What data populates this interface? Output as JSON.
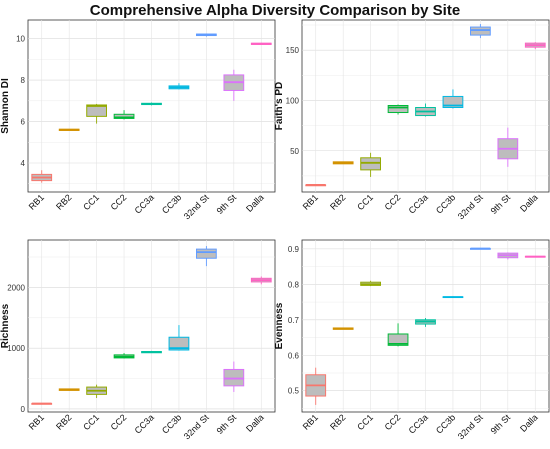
{
  "title": "Comprehensive Alpha Diversity Comparison by Site",
  "chart_data": [
    {
      "type": "box",
      "ylabel": "Shannon DI",
      "ylim": [
        2.6,
        10.9
      ],
      "yticks": [
        4,
        6,
        8,
        10
      ],
      "categories": [
        "RB1",
        "RB2",
        "CC1",
        "CC2",
        "CC3a",
        "CC3b",
        "32nd St",
        "9th St",
        "Dalla"
      ],
      "colors": [
        "#F8766D",
        "#D39200",
        "#93AA00",
        "#00BA38",
        "#00C19F",
        "#00B9E3",
        "#619CFF",
        "#DB72FB",
        "#FF61C3"
      ],
      "boxes": [
        {
          "lower_whisker": 3.05,
          "q1": 3.15,
          "median": 3.3,
          "q3": 3.45,
          "upper_whisker": 3.65
        },
        {
          "lower_whisker": 5.57,
          "q1": 5.57,
          "median": 5.6,
          "q3": 5.63,
          "upper_whisker": 5.63
        },
        {
          "lower_whisker": 5.9,
          "q1": 6.25,
          "median": 6.75,
          "q3": 6.8,
          "upper_whisker": 6.85
        },
        {
          "lower_whisker": 6.1,
          "q1": 6.15,
          "median": 6.2,
          "q3": 6.35,
          "upper_whisker": 6.55
        },
        {
          "lower_whisker": 6.78,
          "q1": 6.82,
          "median": 6.85,
          "q3": 6.88,
          "upper_whisker": 6.92
        },
        {
          "lower_whisker": 7.55,
          "q1": 7.58,
          "median": 7.65,
          "q3": 7.72,
          "upper_whisker": 7.85
        },
        {
          "lower_whisker": 10.1,
          "q1": 10.15,
          "median": 10.2,
          "q3": 10.22,
          "upper_whisker": 10.25
        },
        {
          "lower_whisker": 7.0,
          "q1": 7.5,
          "median": 7.9,
          "q3": 8.25,
          "upper_whisker": 8.5
        },
        {
          "lower_whisker": 9.7,
          "q1": 9.72,
          "median": 9.75,
          "q3": 9.78,
          "upper_whisker": 9.8
        }
      ]
    },
    {
      "type": "box",
      "ylabel": "Faith's PD",
      "ylim": [
        9,
        180
      ],
      "yticks": [
        50,
        100,
        150
      ],
      "categories": [
        "RB1",
        "RB2",
        "CC1",
        "CC2",
        "CC3a",
        "CC3b",
        "32nd St",
        "9th St",
        "Dalla"
      ],
      "colors": [
        "#F8766D",
        "#D39200",
        "#93AA00",
        "#00BA38",
        "#00C19F",
        "#00B9E3",
        "#619CFF",
        "#DB72FB",
        "#FF61C3"
      ],
      "boxes": [
        {
          "lower_whisker": 16,
          "q1": 16,
          "median": 16,
          "q3": 16,
          "upper_whisker": 16
        },
        {
          "lower_whisker": 37,
          "q1": 37,
          "median": 38,
          "q3": 39,
          "upper_whisker": 39
        },
        {
          "lower_whisker": 24,
          "q1": 31,
          "median": 38,
          "q3": 43,
          "upper_whisker": 48
        },
        {
          "lower_whisker": 86,
          "q1": 88,
          "median": 93,
          "q3": 95,
          "upper_whisker": 96
        },
        {
          "lower_whisker": 84,
          "q1": 85,
          "median": 89,
          "q3": 93,
          "upper_whisker": 97
        },
        {
          "lower_whisker": 92,
          "q1": 93,
          "median": 95,
          "q3": 104,
          "upper_whisker": 111
        },
        {
          "lower_whisker": 162,
          "q1": 165,
          "median": 170,
          "q3": 173,
          "upper_whisker": 176
        },
        {
          "lower_whisker": 34,
          "q1": 42,
          "median": 52,
          "q3": 62,
          "upper_whisker": 73
        },
        {
          "lower_whisker": 151,
          "q1": 153,
          "median": 155,
          "q3": 157,
          "upper_whisker": 158
        }
      ]
    },
    {
      "type": "box",
      "ylabel": "Richness",
      "ylim": [
        -50,
        2780
      ],
      "yticks": [
        0,
        1000,
        2000
      ],
      "categories": [
        "RB1",
        "RB2",
        "CC1",
        "CC2",
        "CC3a",
        "CC3b",
        "32nd St",
        "9th St",
        "Dalla"
      ],
      "colors": [
        "#F8766D",
        "#D39200",
        "#93AA00",
        "#00BA38",
        "#00C19F",
        "#00B9E3",
        "#619CFF",
        "#DB72FB",
        "#FF61C3"
      ],
      "boxes": [
        {
          "lower_whisker": 90,
          "q1": 90,
          "median": 90,
          "q3": 90,
          "upper_whisker": 90
        },
        {
          "lower_whisker": 300,
          "q1": 305,
          "median": 320,
          "q3": 330,
          "upper_whisker": 335
        },
        {
          "lower_whisker": 180,
          "q1": 240,
          "median": 300,
          "q3": 360,
          "upper_whisker": 400
        },
        {
          "lower_whisker": 830,
          "q1": 840,
          "median": 860,
          "q3": 890,
          "upper_whisker": 920
        },
        {
          "lower_whisker": 920,
          "q1": 925,
          "median": 935,
          "q3": 945,
          "upper_whisker": 955
        },
        {
          "lower_whisker": 960,
          "q1": 970,
          "median": 1000,
          "q3": 1180,
          "upper_whisker": 1380
        },
        {
          "lower_whisker": 2350,
          "q1": 2480,
          "median": 2580,
          "q3": 2630,
          "upper_whisker": 2680
        },
        {
          "lower_whisker": 280,
          "q1": 380,
          "median": 500,
          "q3": 650,
          "upper_whisker": 780
        },
        {
          "lower_whisker": 2050,
          "q1": 2090,
          "median": 2120,
          "q3": 2150,
          "upper_whisker": 2180
        }
      ]
    },
    {
      "type": "box",
      "ylabel": "Evenness",
      "ylim": [
        0.44,
        0.925
      ],
      "yticks": [
        0.5,
        0.6,
        0.7,
        0.8,
        0.9
      ],
      "categories": [
        "RB1",
        "RB2",
        "CC1",
        "CC2",
        "CC3a",
        "CC3b",
        "32nd St",
        "9th St",
        "Dalla"
      ],
      "colors": [
        "#F8766D",
        "#D39200",
        "#93AA00",
        "#00BA38",
        "#00C19F",
        "#00B9E3",
        "#619CFF",
        "#DB72FB",
        "#FF61C3"
      ],
      "boxes": [
        {
          "lower_whisker": 0.46,
          "q1": 0.485,
          "median": 0.515,
          "q3": 0.545,
          "upper_whisker": 0.565
        },
        {
          "lower_whisker": 0.673,
          "q1": 0.673,
          "median": 0.675,
          "q3": 0.677,
          "upper_whisker": 0.677
        },
        {
          "lower_whisker": 0.795,
          "q1": 0.797,
          "median": 0.8,
          "q3": 0.806,
          "upper_whisker": 0.81
        },
        {
          "lower_whisker": 0.625,
          "q1": 0.628,
          "median": 0.632,
          "q3": 0.66,
          "upper_whisker": 0.69
        },
        {
          "lower_whisker": 0.68,
          "q1": 0.688,
          "median": 0.695,
          "q3": 0.7,
          "upper_whisker": 0.705
        },
        {
          "lower_whisker": 0.762,
          "q1": 0.763,
          "median": 0.764,
          "q3": 0.765,
          "upper_whisker": 0.766
        },
        {
          "lower_whisker": 0.899,
          "q1": 0.9,
          "median": 0.901,
          "q3": 0.901,
          "upper_whisker": 0.902
        },
        {
          "lower_whisker": 0.87,
          "q1": 0.875,
          "median": 0.882,
          "q3": 0.888,
          "upper_whisker": 0.89
        },
        {
          "lower_whisker": 0.876,
          "q1": 0.877,
          "median": 0.878,
          "q3": 0.879,
          "upper_whisker": 0.88
        }
      ]
    }
  ]
}
